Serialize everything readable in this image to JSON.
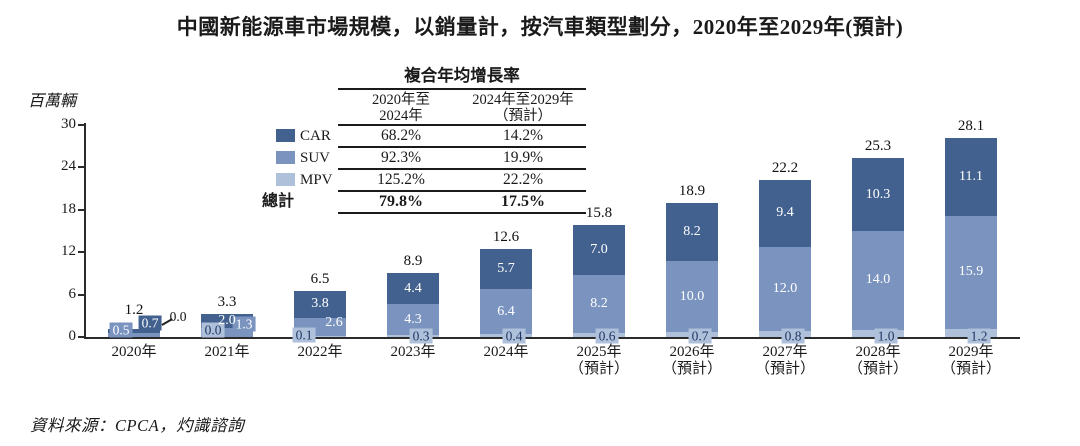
{
  "page": {
    "title": "中國新能源車市場規模，以銷量計，按汽車類型劃分，2020年至2029年(預計)",
    "source": "資料來源：CPCA，灼識諮詢"
  },
  "chart_data": {
    "type": "bar",
    "subtype": "stacked",
    "unit_label": "百萬輛",
    "ylim": [
      0,
      30
    ],
    "yticks": [
      0,
      6,
      12,
      18,
      24,
      30
    ],
    "grid": "off",
    "legend_position": "left-of-cagr-table",
    "stack_order": [
      "MPV",
      "SUV",
      "CAR"
    ],
    "colors": {
      "CAR": "#42618F",
      "SUV": "#7A94BF",
      "MPV": "#AFC0DB",
      "chip_text_dark": "#1F3864"
    },
    "categories": [
      "2020年",
      "2021年",
      "2022年",
      "2023年",
      "2024年",
      "2025年",
      "2026年",
      "2027年",
      "2028年",
      "2029年"
    ],
    "forecast_suffix": "（預計）",
    "forecast_from_index": 5,
    "series": [
      {
        "name": "MPV",
        "values": [
          0.0,
          0.0,
          0.1,
          0.3,
          0.4,
          0.6,
          0.7,
          0.8,
          1.0,
          1.2
        ]
      },
      {
        "name": "SUV",
        "values": [
          0.5,
          1.3,
          2.6,
          4.3,
          6.4,
          8.2,
          10.0,
          12.0,
          14.0,
          15.9
        ]
      },
      {
        "name": "CAR",
        "values": [
          0.7,
          2.0,
          3.8,
          4.4,
          5.7,
          7.0,
          8.2,
          9.4,
          10.3,
          11.1
        ]
      }
    ],
    "totals": [
      1.2,
      3.3,
      6.5,
      8.9,
      12.6,
      15.8,
      18.9,
      22.2,
      25.3,
      28.1
    ],
    "label_layouts": [
      "tiny",
      "small",
      "compact",
      "normal",
      "normal",
      "normal",
      "normal",
      "normal",
      "normal",
      "normal"
    ],
    "legend": [
      {
        "name": "CAR",
        "cagr_2020_2024": "68.2%",
        "cagr_2024_2029": "14.2%"
      },
      {
        "name": "SUV",
        "cagr_2020_2024": "92.3%",
        "cagr_2024_2029": "19.9%"
      },
      {
        "name": "MPV",
        "cagr_2020_2024": "125.2%",
        "cagr_2024_2029": "22.2%"
      }
    ],
    "total_row": {
      "name": "總計",
      "cagr_2020_2024": "79.8%",
      "cagr_2024_2029": "17.5%"
    },
    "cagr_table": {
      "title": "複合年均增長率",
      "col1_header": [
        "2020年至",
        "2024年"
      ],
      "col2_header": [
        "2024年至2029年",
        "（預計）"
      ]
    }
  }
}
